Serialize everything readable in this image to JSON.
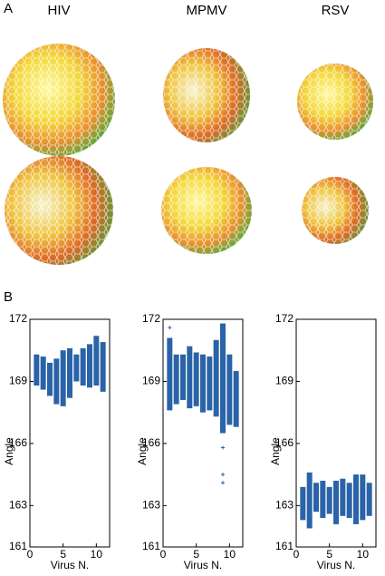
{
  "panel_a": {
    "label": "A",
    "columns": [
      "HIV",
      "MPMV",
      "RSV"
    ]
  },
  "panel_b": {
    "label": "B"
  },
  "chart_data": [
    {
      "type": "range-strip",
      "ylabel": "Angle",
      "xlabel": "Virus N.",
      "color": "#2a63a8",
      "x": [
        1,
        2,
        3,
        4,
        5,
        6,
        7,
        8,
        9,
        10,
        11
      ],
      "low": [
        168.8,
        168.6,
        168.3,
        167.9,
        167.8,
        168.2,
        169.0,
        168.8,
        168.7,
        168.8,
        168.5
      ],
      "high": [
        170.3,
        170.2,
        169.9,
        170.1,
        170.5,
        170.6,
        170.3,
        170.6,
        170.8,
        171.2,
        170.9
      ],
      "outlier_x": [],
      "outlier_y": [],
      "xlim": [
        0,
        12
      ],
      "xticks": [
        0,
        5,
        10
      ],
      "ylim": [
        161,
        172
      ],
      "yticks": [
        161,
        163,
        166,
        169,
        172
      ]
    },
    {
      "type": "range-strip",
      "ylabel": "Angle",
      "xlabel": "Virus N.",
      "color": "#2a63a8",
      "x": [
        1,
        2,
        3,
        4,
        5,
        6,
        7,
        8,
        9,
        10,
        11
      ],
      "low": [
        167.6,
        167.9,
        168.1,
        167.7,
        167.8,
        167.5,
        167.6,
        167.3,
        166.5,
        166.9,
        166.8
      ],
      "high": [
        171.1,
        170.3,
        170.3,
        170.7,
        170.4,
        170.3,
        170.2,
        171.0,
        171.8,
        170.3,
        169.5
      ],
      "outlier_x": [
        1,
        9,
        9,
        9
      ],
      "outlier_y": [
        171.6,
        165.8,
        164.5,
        164.1
      ],
      "xlim": [
        0,
        12
      ],
      "xticks": [
        0,
        5,
        10
      ],
      "ylim": [
        161,
        172
      ],
      "yticks": [
        161,
        163,
        166,
        169,
        172
      ]
    },
    {
      "type": "range-strip",
      "ylabel": "Angle",
      "xlabel": "Virus N.",
      "color": "#2a63a8",
      "x": [
        1,
        2,
        3,
        4,
        5,
        6,
        7,
        8,
        9,
        10,
        11
      ],
      "low": [
        162.3,
        161.9,
        162.7,
        162.4,
        162.6,
        162.1,
        162.5,
        162.4,
        162.1,
        162.3,
        162.5
      ],
      "high": [
        163.9,
        164.6,
        164.1,
        164.2,
        163.9,
        164.2,
        164.3,
        164.1,
        164.5,
        164.5,
        164.1
      ],
      "outlier_x": [],
      "outlier_y": [],
      "xlim": [
        0,
        12
      ],
      "xticks": [
        0,
        5,
        10
      ],
      "ylim": [
        161,
        172
      ],
      "yticks": [
        161,
        163,
        166,
        169,
        172
      ]
    }
  ]
}
